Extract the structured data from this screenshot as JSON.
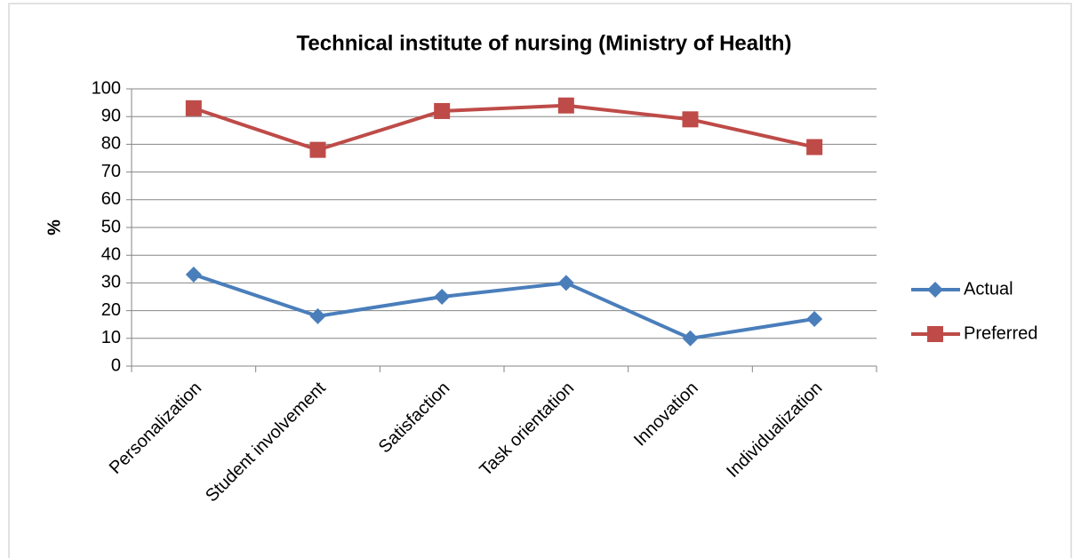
{
  "chart_data": {
    "type": "line",
    "title": "Technical institute of nursing (Ministry of Health)",
    "y_label": "%",
    "categories": [
      "Personalization",
      "Student involvement",
      "Satisfaction",
      "Task orientation",
      "Innovation",
      "Individualization"
    ],
    "series": [
      {
        "name": "Actual",
        "color": "#4a7ebb",
        "marker": "diamond",
        "values": [
          33,
          18,
          25,
          30,
          10,
          17
        ]
      },
      {
        "name": "Preferred",
        "color": "#be4b48",
        "marker": "square",
        "values": [
          93,
          78,
          92,
          94,
          89,
          79
        ]
      }
    ],
    "ylim": [
      0,
      100
    ],
    "yticks": [
      0,
      10,
      20,
      30,
      40,
      50,
      60,
      70,
      80,
      90,
      100
    ],
    "grid": true,
    "legend": "right"
  }
}
